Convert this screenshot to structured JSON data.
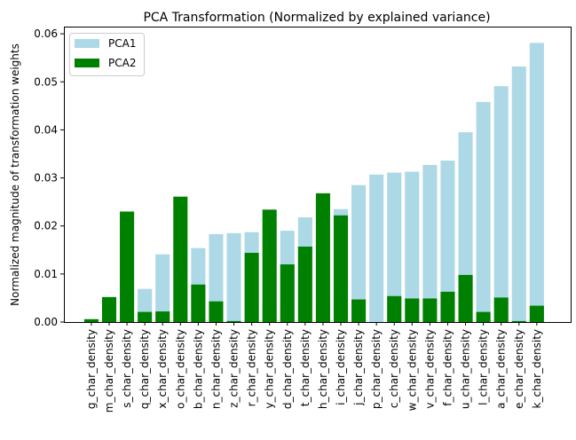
{
  "chart_data": {
    "type": "bar",
    "title": "PCA Transformation (Normalized by explained variance)",
    "xlabel": "",
    "ylabel": "Normalized magnitude of transformation weights",
    "ylim": [
      0,
      0.0615
    ],
    "yticks": [
      "0.00",
      "0.01",
      "0.02",
      "0.03",
      "0.04",
      "0.05",
      "0.06"
    ],
    "grid": false,
    "legend_position": "upper-left",
    "categories": [
      "g_char_density",
      "m_char_density",
      "s_char_density",
      "q_char_density",
      "x_char_density",
      "o_char_density",
      "b_char_density",
      "n_char_density",
      "z_char_density",
      "r_char_density",
      "y_char_density",
      "d_char_density",
      "t_char_density",
      "h_char_density",
      "i_char_density",
      "j_char_density",
      "p_char_density",
      "c_char_density",
      "w_char_density",
      "v_char_density",
      "f_char_density",
      "u_char_density",
      "l_char_density",
      "a_char_density",
      "e_char_density",
      "k_char_density"
    ],
    "series": [
      {
        "name": "PCA1",
        "color": "#add8e6",
        "values": [
          0.0003,
          0.001,
          0.002,
          0.0069,
          0.0141,
          0.003,
          0.0154,
          0.0183,
          0.0185,
          0.0187,
          0.004,
          0.019,
          0.0218,
          0.005,
          0.0235,
          0.0285,
          0.0307,
          0.0311,
          0.0313,
          0.0327,
          0.0336,
          0.0395,
          0.0458,
          0.0491,
          0.0532,
          0.0581
        ]
      },
      {
        "name": "PCA2",
        "color": "#008000",
        "values": [
          0.0006,
          0.0052,
          0.023,
          0.0021,
          0.0022,
          0.0261,
          0.0078,
          0.0043,
          0.0002,
          0.0144,
          0.0234,
          0.012,
          0.0157,
          0.0268,
          0.0222,
          0.0047,
          0.0,
          0.0054,
          0.0049,
          0.0049,
          0.0063,
          0.0098,
          0.0021,
          0.0051,
          0.0002,
          0.0034
        ]
      }
    ]
  }
}
